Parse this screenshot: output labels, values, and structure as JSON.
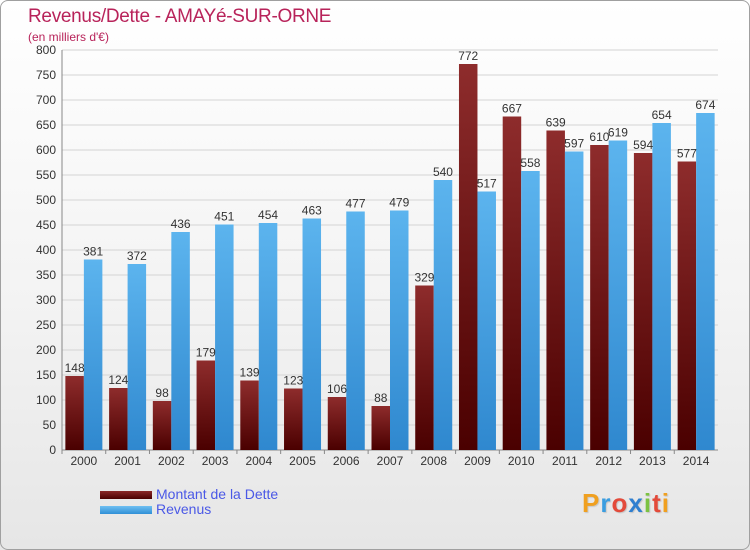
{
  "title": "Revenus/Dette - AMAYé-SUR-ORNE",
  "subtitle": "(en milliers d'€)",
  "logo": "Proxiti",
  "colors": {
    "title": "#b8235a",
    "debt": "#7a1a1a",
    "revenue": "#4aa6e6",
    "legend_text": "#4a58e6"
  },
  "chart_data": {
    "type": "bar",
    "categories": [
      "2000",
      "2001",
      "2002",
      "2003",
      "2004",
      "2005",
      "2006",
      "2007",
      "2008",
      "2009",
      "2010",
      "2011",
      "2012",
      "2013",
      "2014"
    ],
    "series": [
      {
        "name": "Montant de la Dette",
        "values": [
          148,
          124,
          98,
          179,
          139,
          123,
          106,
          88,
          329,
          772,
          667,
          639,
          610,
          594,
          577
        ]
      },
      {
        "name": "Revenus",
        "values": [
          381,
          372,
          436,
          451,
          454,
          463,
          477,
          479,
          540,
          517,
          558,
          597,
          619,
          654,
          674
        ]
      }
    ],
    "ylim": [
      0,
      800
    ],
    "yticks": [
      0,
      50,
      100,
      150,
      200,
      250,
      300,
      350,
      400,
      450,
      500,
      550,
      600,
      650,
      700,
      750,
      800
    ],
    "grid": true,
    "legend_position": "bottom-left"
  }
}
